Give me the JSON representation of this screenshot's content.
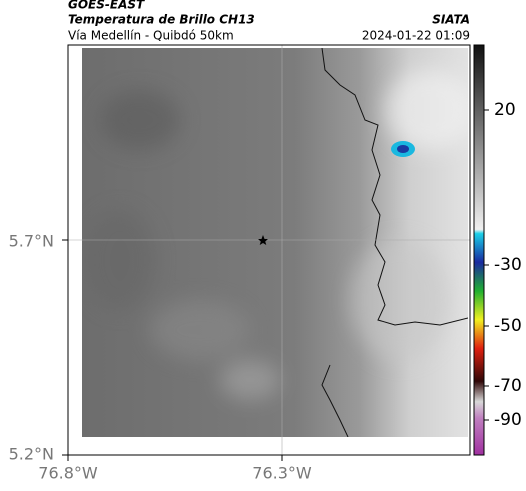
{
  "header": {
    "source": "GOES-EAST",
    "title": "Temperatura de Brillo CH13",
    "subtitle": "Vía Medellín - Quibdó 50km",
    "org": "SIATA",
    "datetime": "2024-01-22 01:09"
  },
  "map": {
    "lat_labels": [
      "5.7°N",
      "5.2°N"
    ],
    "lon_labels": [
      "76.8°W",
      "76.3°W"
    ]
  },
  "colorbar": {
    "ticks": [
      20,
      -30,
      -50,
      -70,
      -90
    ]
  }
}
